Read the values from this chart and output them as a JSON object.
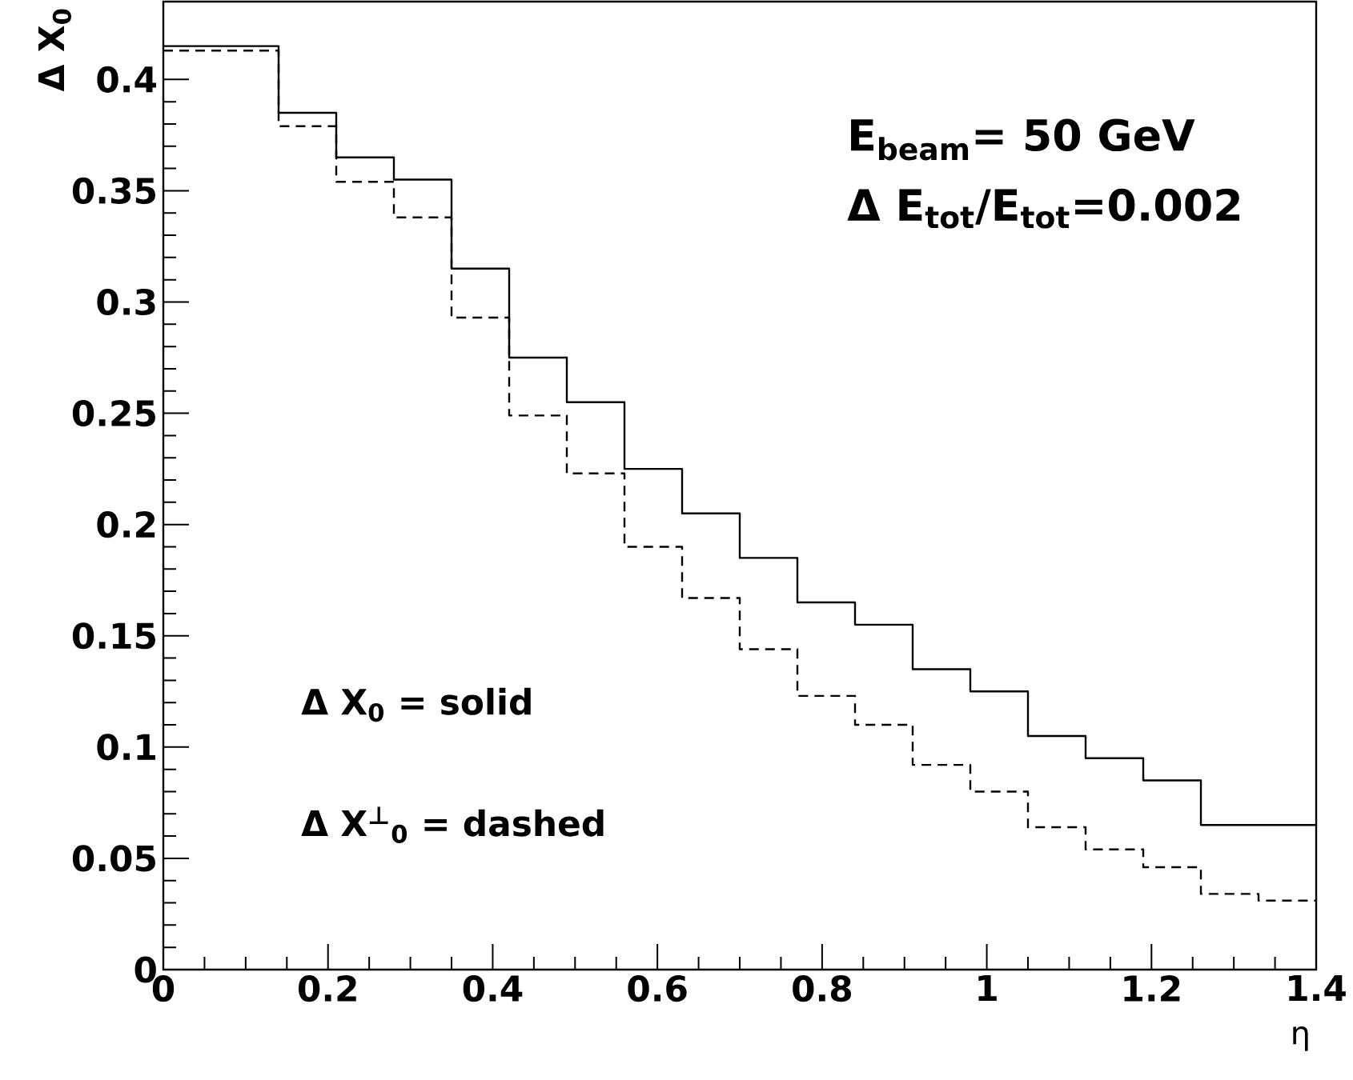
{
  "chart_data": {
    "type": "step",
    "xlabel": "η",
    "ylabel": "Δ X$_{0}$",
    "series": [
      {
        "color": "#000000",
        "line_style": "solid",
        "x": [
          0,
          0.14,
          0.21,
          0.28,
          0.35,
          0.42,
          0.49,
          0.56,
          0.63,
          0.7,
          0.77,
          0.84,
          0.91,
          0.98,
          1.05,
          1.12,
          1.19,
          1.26,
          1.4
        ],
        "values": [
          0.415,
          0.385,
          0.365,
          0.355,
          0.315,
          0.275,
          0.255,
          0.225,
          0.205,
          0.185,
          0.165,
          0.155,
          0.135,
          0.125,
          0.105,
          0.095,
          0.085,
          0.065,
          0.065
        ]
      },
      {
        "color": "#000000",
        "line_style": "dashed",
        "x": [
          0,
          0.14,
          0.21,
          0.28,
          0.35,
          0.42,
          0.49,
          0.56,
          0.63,
          0.7,
          0.77,
          0.84,
          0.91,
          0.98,
          1.05,
          1.12,
          1.19,
          1.26,
          1.33,
          1.4
        ],
        "values": [
          0.413,
          0.379,
          0.354,
          0.338,
          0.293,
          0.249,
          0.223,
          0.19,
          0.167,
          0.144,
          0.123,
          0.11,
          0.092,
          0.08,
          0.064,
          0.054,
          0.046,
          0.034,
          0.031,
          0.031
        ]
      }
    ],
    "xlim": [
      0,
      1.4
    ],
    "ylim": [
      0,
      0.435
    ],
    "xticks": [
      0,
      0.2,
      0.4,
      0.6,
      0.8,
      1,
      1.2,
      1.4
    ],
    "yticks": [
      0,
      0.05,
      0.1,
      0.15,
      0.2,
      0.25,
      0.3,
      0.35,
      0.4
    ],
    "annotations": [
      "E$_{beam}$= 50 GeV",
      "Δ E$_{tot}$/E$_{tot}$=0.002",
      "Δ X$_{0}$ = solid",
      "Δ X$^{⊥}$$_{0}$ = dashed"
    ]
  }
}
